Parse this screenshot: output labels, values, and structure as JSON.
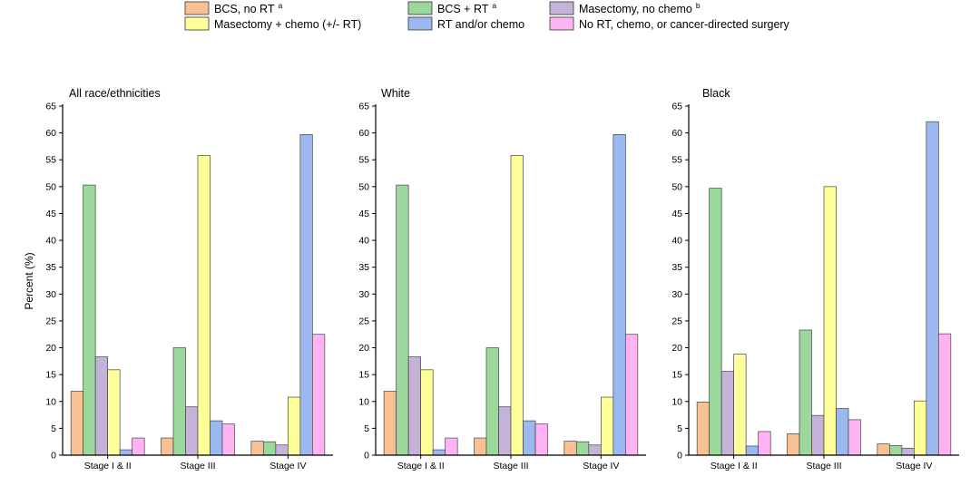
{
  "legend": [
    {
      "label": "BCS, no RT",
      "sup": "a",
      "color": "#F7C195"
    },
    {
      "label": "BCS + RT",
      "sup": "a",
      "color": "#9CD79C"
    },
    {
      "label": "Masectomy, no chemo",
      "sup": "b",
      "color": "#C5B2D8"
    },
    {
      "label": "Masectomy + chemo (+/- RT)",
      "sup": "",
      "color": "#FFFF99"
    },
    {
      "label": "RT and/or chemo",
      "sup": "",
      "color": "#9BB9F0"
    },
    {
      "label": "No RT, chemo, or cancer-directed surgery",
      "sup": "",
      "color": "#FFB3F2"
    }
  ],
  "ylabel": "Percent (%)",
  "chart_data": [
    {
      "type": "bar",
      "title": "All race/ethnicities",
      "categories": [
        "Stage I & II",
        "Stage III",
        "Stage IV"
      ],
      "ylabel": "Percent (%)",
      "ylim": [
        0,
        65
      ],
      "yticks": [
        0,
        5,
        10,
        15,
        20,
        25,
        30,
        35,
        40,
        45,
        50,
        55,
        60,
        65
      ],
      "series": [
        {
          "name": "BCS, no RT",
          "values": [
            11.9,
            3.2,
            2.6
          ]
        },
        {
          "name": "BCS + RT",
          "values": [
            50.3,
            20.0,
            2.5
          ]
        },
        {
          "name": "Masectomy, no chemo",
          "values": [
            18.3,
            9.0,
            1.9
          ]
        },
        {
          "name": "Masectomy + chemo (+/- RT)",
          "values": [
            15.9,
            55.8,
            10.8
          ]
        },
        {
          "name": "RT and/or chemo",
          "values": [
            1.0,
            6.4,
            59.7
          ]
        },
        {
          "name": "No RT, chemo, or cancer-directed surgery",
          "values": [
            3.2,
            5.8,
            22.5
          ]
        }
      ]
    },
    {
      "type": "bar",
      "title": "White",
      "categories": [
        "Stage I & II",
        "Stage III",
        "Stage IV"
      ],
      "ylabel": "",
      "ylim": [
        0,
        65
      ],
      "yticks": [
        0,
        5,
        10,
        15,
        20,
        25,
        30,
        35,
        40,
        45,
        50,
        55,
        60,
        65
      ],
      "series": [
        {
          "name": "BCS, no RT",
          "values": [
            11.9,
            3.2,
            2.6
          ]
        },
        {
          "name": "BCS + RT",
          "values": [
            50.3,
            20.0,
            2.5
          ]
        },
        {
          "name": "Masectomy, no chemo",
          "values": [
            18.3,
            9.0,
            1.9
          ]
        },
        {
          "name": "Masectomy + chemo (+/- RT)",
          "values": [
            15.9,
            55.8,
            10.8
          ]
        },
        {
          "name": "RT and/or chemo",
          "values": [
            1.0,
            6.4,
            59.7
          ]
        },
        {
          "name": "No RT, chemo, or cancer-directed surgery",
          "values": [
            3.2,
            5.8,
            22.5
          ]
        }
      ]
    },
    {
      "type": "bar",
      "title": "Black",
      "categories": [
        "Stage I & II",
        "Stage III",
        "Stage IV"
      ],
      "ylabel": "",
      "ylim": [
        0,
        65
      ],
      "yticks": [
        0,
        5,
        10,
        15,
        20,
        25,
        30,
        35,
        40,
        45,
        50,
        55,
        60,
        65
      ],
      "series": [
        {
          "name": "BCS, no RT",
          "values": [
            9.9,
            4.0,
            2.1
          ]
        },
        {
          "name": "BCS + RT",
          "values": [
            49.7,
            23.3,
            1.8
          ]
        },
        {
          "name": "Masectomy, no chemo",
          "values": [
            15.6,
            7.4,
            1.3
          ]
        },
        {
          "name": "Masectomy + chemo (+/- RT)",
          "values": [
            18.8,
            50.0,
            10.1
          ]
        },
        {
          "name": "RT and/or chemo",
          "values": [
            1.7,
            8.7,
            62.1
          ]
        },
        {
          "name": "No RT, chemo, or cancer-directed surgery",
          "values": [
            4.4,
            6.6,
            22.6
          ]
        }
      ]
    }
  ]
}
